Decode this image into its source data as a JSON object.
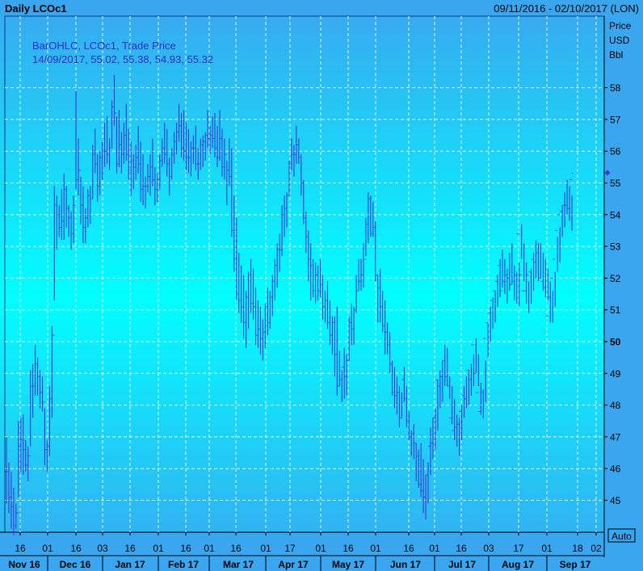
{
  "header": {
    "title": "Daily LCOc1",
    "date_range": "09/11/2016 - 02/10/2017 (LON)"
  },
  "legend": {
    "line1": "BarOHLC, LCOc1, Trade Price",
    "line2": "14/09/2017, 55.02, 55.38, 54.93, 55.32"
  },
  "axis": {
    "unit_lines": [
      "Price",
      "USD",
      "Bbl"
    ],
    "auto_label": "Auto",
    "y_ticks": [
      "58",
      "57",
      "56",
      "55",
      "54",
      "53",
      "52",
      "51",
      "50",
      "49",
      "48",
      "47",
      "46",
      "45"
    ],
    "x_day_ticks": [
      "16",
      "01",
      "16",
      "03",
      "16",
      "01",
      "16",
      "01",
      "16",
      "01",
      "17",
      "01",
      "16",
      "01",
      "16",
      "01",
      "16",
      "03",
      "17",
      "01",
      "16",
      "01",
      "18",
      "02"
    ],
    "x_month_labels": [
      "Nov 16",
      "Dec 16",
      "Jan 17",
      "Feb 17",
      "Mar 17",
      "Apr 17",
      "May 17",
      "Jun 17",
      "Jul 17",
      "Aug 17",
      "Sep 17"
    ]
  },
  "colors": {
    "background_top": "#3aa6f0",
    "background_mid": "#00ffff",
    "bars": "#3a3ad6",
    "text": "#000000",
    "legend_text": "#2d2dc8",
    "grid": "#ffffff"
  },
  "chart_data": {
    "type": "ohlc",
    "title": "Daily LCOc1",
    "ylim": [
      44,
      59.2
    ],
    "y_axis_position": "right",
    "grid": true,
    "last_close": 55.32,
    "last_bar": {
      "date": "14/09/2017",
      "open": 55.02,
      "high": 55.38,
      "low": 54.93,
      "close": 55.32
    },
    "x_start": "2016-11-09",
    "x_end": "2017-10-02",
    "highs": [
      47.0,
      46.2,
      45.9,
      45.4,
      44.9,
      47.5,
      47.6,
      47.7,
      46.9,
      46.7,
      49.1,
      49.3,
      49.9,
      49.5,
      49.1,
      48.9,
      47.9,
      46.9,
      48.6,
      50.5,
      54.9,
      54.6,
      54.3,
      54.8,
      55.3,
      54.9,
      54.3,
      54.1,
      54.6,
      57.9,
      56.4,
      55.2,
      54.9,
      54.2,
      54.8,
      54.9,
      56.2,
      56.7,
      55.9,
      56.0,
      56.3,
      56.9,
      57.1,
      56.4,
      57.6,
      58.4,
      57.1,
      57.3,
      56.6,
      56.9,
      57.5,
      56.7,
      56.3,
      55.9,
      56.2,
      56.8,
      56.3,
      55.9,
      55.2,
      55.6,
      55.9,
      56.4,
      55.5,
      55.3,
      55.9,
      56.4,
      56.9,
      56.7,
      55.8,
      56.1,
      56.6,
      56.9,
      57.5,
      57.2,
      57.3,
      56.9,
      56.7,
      56.3,
      56.5,
      56.8,
      56.1,
      56.4,
      56.5,
      56.6,
      57.3,
      56.8,
      57.1,
      57.2,
      56.8,
      57.3,
      56.7,
      56.4,
      55.7,
      56.4,
      56.1,
      54.6,
      53.9,
      52.8,
      52.4,
      52.1,
      51.6,
      52.2,
      52.6,
      52.3,
      51.7,
      51.3,
      51.1,
      50.7,
      51.2,
      51.7,
      51.6,
      52.1,
      52.6,
      53.1,
      53.4,
      54.3,
      54.6,
      54.7,
      55.7,
      56.4,
      56.2,
      56.8,
      56.4,
      55.9,
      55.1,
      54.1,
      53.5,
      53.1,
      52.6,
      52.5,
      52.4,
      52.6,
      52.1,
      51.6,
      51.9,
      51.3,
      50.8,
      50.8,
      51.1,
      49.7,
      49.1,
      49.8,
      49.6,
      50.8,
      51.2,
      51.1,
      52.1,
      52.6,
      52.6,
      53.1,
      53.9,
      54.7,
      54.6,
      54.4,
      53.8,
      52.1,
      52.3,
      51.6,
      51.3,
      50.6,
      50.3,
      49.4,
      49.2,
      48.9,
      48.6,
      48.4,
      49.2,
      48.6,
      47.8,
      47.2,
      47.4,
      46.8,
      46.6,
      46.8,
      46.3,
      45.8,
      46.2,
      47.3,
      47.6,
      47.9,
      48.8,
      49.1,
      49.4,
      49.9,
      49.8,
      48.9,
      48.6,
      48.2,
      47.7,
      47.6,
      48.0,
      48.6,
      48.9,
      49.1,
      49.3,
      49.6,
      50.1,
      49.6,
      48.7,
      48.5,
      49.4,
      50.6,
      51.1,
      51.4,
      51.6,
      52.1,
      52.6,
      52.9,
      52.6,
      52.3,
      52.8,
      53.1,
      52.4,
      52.2,
      52.5,
      53.7,
      53.1,
      52.5,
      51.9,
      52.3,
      52.8,
      53.2,
      53.1,
      53.1,
      52.8,
      52.6,
      52.3,
      51.9,
      51.6,
      52.2,
      53.3,
      53.6,
      54.3,
      54.7,
      55.1,
      54.9,
      54.6,
      54.5,
      55.4
    ],
    "lows": [
      44.9,
      44.6,
      44.1,
      43.9,
      44.1,
      45.1,
      45.9,
      45.8,
      45.9,
      45.6,
      46.7,
      47.6,
      48.3,
      48.3,
      47.9,
      47.8,
      46.1,
      45.9,
      46.4,
      47.6,
      51.3,
      52.9,
      53.3,
      53.2,
      53.2,
      53.6,
      53.3,
      52.9,
      53.1,
      54.8,
      54.6,
      53.7,
      53.1,
      53.1,
      53.6,
      53.7,
      54.5,
      55.3,
      54.4,
      54.6,
      55.1,
      55.5,
      55.6,
      55.4,
      56.1,
      56.8,
      55.3,
      55.5,
      55.3,
      55.6,
      55.7,
      55.1,
      54.6,
      54.8,
      55.1,
      55.3,
      54.4,
      54.3,
      54.2,
      54.7,
      54.6,
      54.9,
      54.3,
      54.4,
      54.8,
      55.5,
      55.6,
      55.2,
      54.6,
      55.1,
      55.6,
      55.9,
      56.3,
      55.8,
      55.7,
      55.4,
      55.3,
      55.2,
      55.6,
      55.4,
      55.1,
      55.4,
      55.5,
      55.7,
      56.1,
      55.9,
      56.1,
      55.8,
      55.5,
      55.7,
      55.2,
      55.1,
      54.3,
      54.9,
      53.3,
      52.2,
      51.3,
      50.9,
      50.6,
      50.1,
      49.8,
      50.4,
      50.9,
      50.7,
      49.9,
      49.8,
      49.6,
      49.4,
      49.8,
      50.2,
      50.4,
      50.8,
      51.3,
      51.7,
      52.2,
      52.7,
      53.3,
      53.6,
      54.6,
      55.4,
      55.2,
      55.6,
      55.6,
      54.6,
      53.7,
      52.8,
      51.9,
      51.3,
      51.4,
      51.2,
      51.3,
      51.4,
      50.7,
      50.6,
      50.4,
      49.9,
      49.6,
      48.9,
      48.3,
      48.6,
      48.1,
      48.2,
      48.3,
      49.4,
      49.9,
      49.9,
      50.9,
      51.6,
      51.6,
      51.7,
      52.7,
      53.1,
      53.3,
      53.3,
      51.9,
      50.6,
      50.6,
      50.3,
      49.6,
      49.6,
      49.0,
      48.3,
      47.9,
      47.7,
      47.3,
      47.6,
      48.1,
      47.3,
      46.9,
      46.4,
      46.3,
      45.6,
      45.4,
      45.1,
      44.6,
      44.4,
      44.9,
      45.8,
      46.3,
      46.6,
      47.2,
      47.9,
      48.1,
      48.6,
      48.6,
      48.2,
      47.4,
      46.9,
      46.7,
      46.4,
      46.9,
      47.6,
      47.9,
      48.0,
      48.3,
      48.6,
      49.0,
      48.6,
      47.7,
      47.6,
      48.1,
      49.5,
      50.0,
      50.4,
      50.6,
      51.1,
      51.4,
      51.7,
      51.5,
      51.2,
      51.6,
      51.8,
      51.3,
      51.2,
      51.1,
      52.6,
      51.9,
      51.2,
      50.9,
      51.2,
      51.6,
      52.0,
      51.9,
      52.0,
      51.6,
      51.4,
      51.3,
      50.6,
      50.6,
      51.1,
      52.2,
      52.5,
      53.3,
      53.6,
      54.0,
      53.8,
      53.5,
      53.7,
      54.9
    ],
    "closes": [
      45.9,
      45.1,
      44.8,
      44.2,
      44.6,
      46.7,
      46.9,
      46.6,
      46.1,
      46.4,
      48.6,
      48.6,
      49.3,
      48.9,
      48.4,
      48.1,
      46.6,
      46.7,
      48.2,
      50.2,
      54.3,
      54.0,
      53.6,
      53.8,
      54.8,
      54.2,
      53.9,
      53.4,
      54.3,
      55.1,
      55.4,
      54.3,
      53.6,
      53.9,
      54.6,
      54.5,
      55.9,
      55.6,
      54.9,
      55.8,
      56.0,
      56.0,
      55.9,
      56.1,
      57.4,
      57.2,
      55.6,
      56.2,
      55.9,
      56.5,
      55.9,
      55.4,
      55.7,
      55.5,
      55.8,
      55.6,
      54.8,
      54.9,
      54.9,
      55.2,
      55.5,
      55.1,
      54.8,
      55.1,
      55.7,
      56.1,
      55.9,
      55.6,
      55.2,
      55.9,
      56.3,
      56.6,
      56.8,
      56.1,
      56.0,
      55.8,
      55.8,
      56.1,
      56.1,
      55.6,
      55.6,
      56.2,
      56.3,
      56.5,
      56.4,
      56.5,
      56.4,
      56.1,
      55.8,
      56.4,
      55.5,
      55.9,
      55.4,
      55.2,
      53.5,
      52.6,
      51.5,
      51.3,
      51.1,
      50.6,
      51.4,
      52.1,
      51.2,
      51.1,
      50.2,
      50.4,
      50.1,
      50.3,
      51.1,
      50.6,
      51.4,
      51.9,
      52.4,
      52.9,
      52.9,
      54.0,
      54.2,
      54.6,
      55.6,
      55.9,
      55.9,
      56.2,
      55.8,
      55.0,
      53.9,
      53.3,
      52.6,
      52.4,
      51.6,
      52.1,
      51.6,
      51.8,
      51.1,
      51.3,
      50.6,
      50.2,
      50.6,
      49.6,
      48.6,
      48.8,
      49.2,
      48.9,
      49.4,
      50.6,
      50.4,
      51.0,
      51.6,
      51.9,
      52.1,
      52.6,
      53.7,
      54.5,
      53.4,
      53.6,
      52.1,
      51.7,
      51.1,
      50.5,
      50.3,
      49.9,
      49.3,
      48.4,
      48.3,
      48.4,
      47.6,
      48.8,
      48.2,
      47.5,
      47.0,
      47.1,
      46.8,
      46.4,
      45.5,
      45.3,
      45.1,
      45.8,
      46.7,
      46.8,
      47.6,
      48.8,
      48.6,
      48.9,
      49.4,
      48.9,
      48.6,
      47.6,
      47.2,
      47.3,
      47.4,
      47.8,
      48.3,
      48.2,
      49.1,
      48.8,
      49.9,
      49.0,
      48.4,
      47.8,
      48.4,
      50.1,
      50.6,
      50.9,
      51.3,
      51.6,
      51.9,
      52.4,
      51.6,
      51.9,
      52.1,
      52.0,
      51.8,
      51.9,
      52.1,
      53.4,
      52.1,
      51.6,
      51.6,
      52.1,
      52.2,
      52.6,
      52.5,
      52.8,
      52.0,
      51.9,
      51.7,
      50.8,
      51.4,
      52.0,
      52.6,
      53.5,
      54.0,
      54.1,
      54.3,
      54.3,
      54.2,
      55.1,
      55.3
    ]
  }
}
